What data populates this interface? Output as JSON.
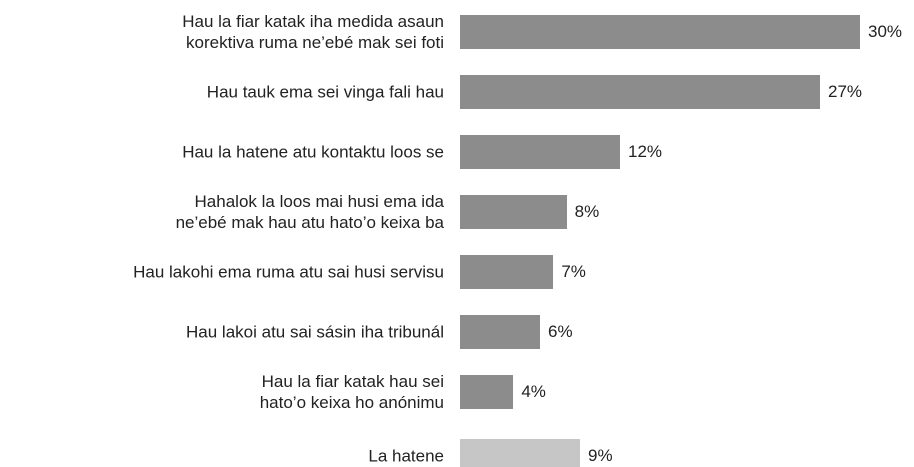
{
  "chart_data": {
    "type": "bar",
    "orientation": "horizontal",
    "categories": [
      "Hau la fiar katak iha medida asaun\nkorektiva ruma ne’ebé mak sei foti",
      "Hau tauk ema sei vinga fali hau",
      "Hau la hatene atu kontaktu loos se",
      "Hahalok la loos mai husi ema ida\nne’ebé mak hau atu hato’o keixa ba",
      "Hau lakohi ema ruma atu sai husi servisu",
      "Hau lakoi atu sai sásin iha tribunál",
      "Hau la fiar katak hau sei\nhato’o keixa ho anónimu",
      "La hatene"
    ],
    "values": [
      30,
      27,
      12,
      8,
      7,
      6,
      4,
      9
    ],
    "value_labels": [
      "30%",
      "27%",
      "12%",
      "8%",
      "7%",
      "6%",
      "4%",
      "9%"
    ],
    "colors": [
      "#8c8c8c",
      "#8c8c8c",
      "#8c8c8c",
      "#8c8c8c",
      "#8c8c8c",
      "#8c8c8c",
      "#8c8c8c",
      "#c6c6c6"
    ]
  }
}
